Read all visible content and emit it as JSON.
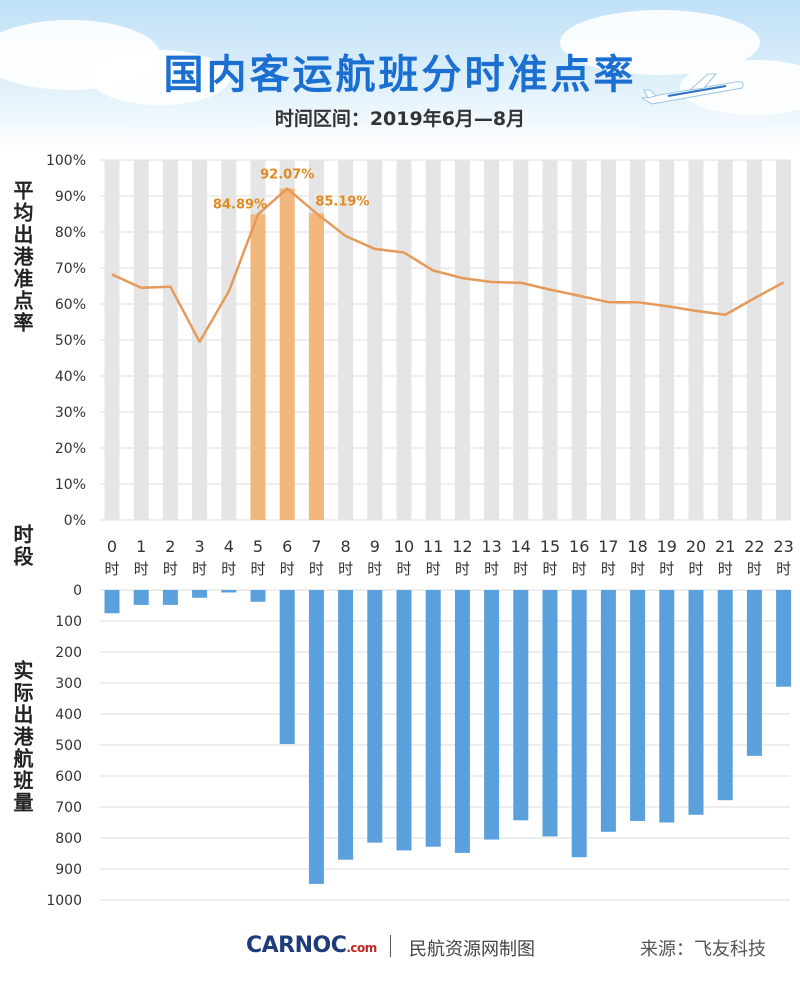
{
  "header": {
    "title": "国内客运航班分时准点率",
    "subtitle": "时间区间：2019年6月—8月"
  },
  "axis_labels": {
    "top_y": "平均出港准点率",
    "hour_axis": "时段",
    "bottom_y": "实际出港航班量"
  },
  "footer": {
    "logo": "CARNOC",
    "logo_suffix": ".com",
    "maker": "民航资源网制图",
    "source": "来源：飞友科技"
  },
  "colors": {
    "title": "#1a6fd1",
    "line": "#e59a5a",
    "highlight_bar": "#f1b77c",
    "bg_bar": "#e5e5e5",
    "flight_bar": "#5aa0dc",
    "label_orange": "#e08a22"
  },
  "chart_data": [
    {
      "type": "line",
      "title": "",
      "ylabel": "平均出港准点率",
      "xlabel": "时段",
      "categories": [
        "0时",
        "1时",
        "2时",
        "3时",
        "4时",
        "5时",
        "6时",
        "7时",
        "8时",
        "9时",
        "10时",
        "11时",
        "12时",
        "13时",
        "14时",
        "15时",
        "16时",
        "17时",
        "18时",
        "19时",
        "20时",
        "21时",
        "22时",
        "23时"
      ],
      "series": [
        {
          "values": [
            68.2,
            64.5,
            64.8,
            49.5,
            63.5,
            84.89,
            92.07,
            85.19,
            78.9,
            75.3,
            74.3,
            69.3,
            67.2,
            66.1,
            65.9,
            64.0,
            62.3,
            60.5,
            60.5,
            59.4,
            58.1,
            57.0,
            61.6,
            66.0
          ]
        }
      ],
      "highlighted_bars": [
        {
          "category": "5时",
          "value": 84.89,
          "label": "84.89%"
        },
        {
          "category": "6时",
          "value": 92.07,
          "label": "92.07%"
        },
        {
          "category": "7时",
          "value": 85.19,
          "label": "85.19%"
        }
      ],
      "ylim": [
        0,
        100
      ],
      "yticks": [
        "0%",
        "10%",
        "20%",
        "30%",
        "40%",
        "50%",
        "60%",
        "70%",
        "80%",
        "90%",
        "100%"
      ],
      "grid": true
    },
    {
      "type": "bar",
      "title": "",
      "ylabel": "实际出港航班量",
      "categories": [
        "0时",
        "1时",
        "2时",
        "3时",
        "4时",
        "5时",
        "6时",
        "7时",
        "8时",
        "9时",
        "10时",
        "11时",
        "12时",
        "13时",
        "14时",
        "15时",
        "16时",
        "17时",
        "18时",
        "19时",
        "20时",
        "21时",
        "22时",
        "23时"
      ],
      "values": [
        75,
        48,
        48,
        25,
        8,
        38,
        497,
        948,
        870,
        815,
        840,
        828,
        848,
        805,
        743,
        795,
        862,
        780,
        745,
        750,
        725,
        678,
        535,
        312
      ],
      "ylim": [
        0,
        1000
      ],
      "yticks": [
        "0",
        "100",
        "200",
        "300",
        "400",
        "500",
        "600",
        "700",
        "800",
        "900",
        "1000"
      ],
      "inverted": true,
      "grid": true
    }
  ]
}
